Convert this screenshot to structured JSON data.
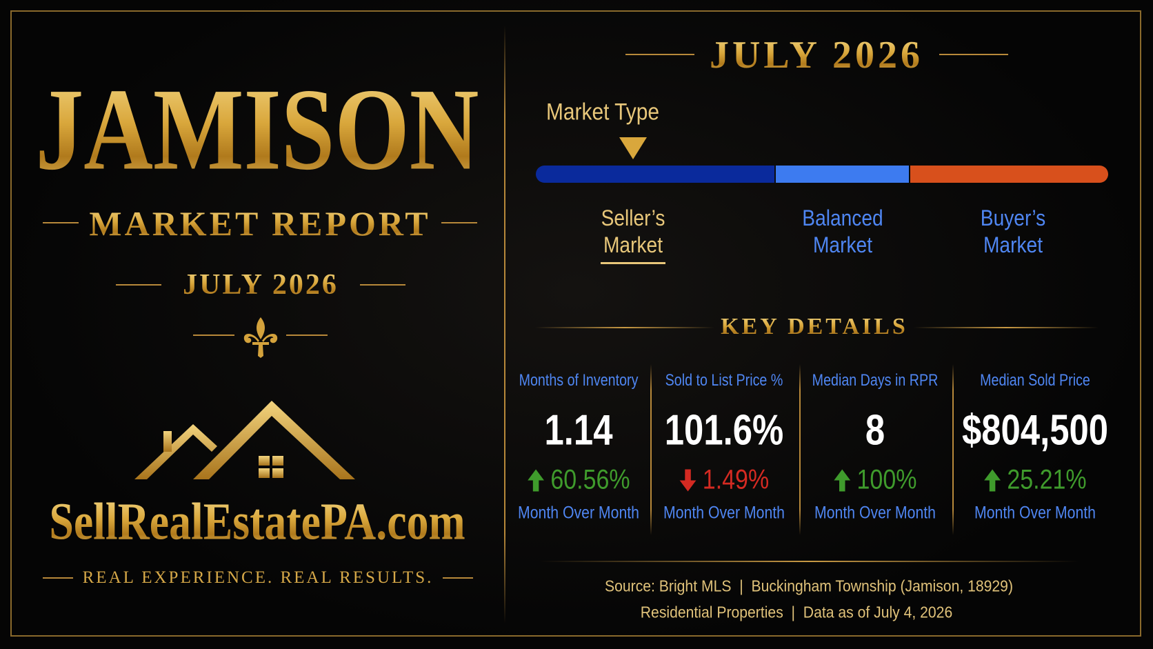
{
  "left": {
    "title": "JAMISON",
    "subtitle": "MARKET REPORT",
    "date": "JULY 2026",
    "brand": "SellRealEstatePA.com",
    "tagline": "REAL EXPERIENCE. REAL RESULTS."
  },
  "right": {
    "date": "JULY 2026",
    "market_type": {
      "label": "Market Type",
      "selected": 0,
      "segments": [
        {
          "name": "Seller’s Market",
          "color": "#0a2a9c",
          "label_color": "#e8c77a"
        },
        {
          "name": "Balanced Market",
          "color": "#3d7bf0",
          "label_color": "#4f86f2"
        },
        {
          "name": "Buyer’s Market",
          "color": "#d8501c",
          "label_color": "#4f86f2"
        }
      ]
    },
    "key_details": {
      "heading": "KEY DETAILS",
      "metrics": [
        {
          "label": "Months of Inventory",
          "value": "1.14",
          "change": "60.56%",
          "direction": "up",
          "period": "Month Over Month"
        },
        {
          "label": "Sold to List Price %",
          "value": "101.6%",
          "change": "1.49%",
          "direction": "down",
          "period": "Month Over Month"
        },
        {
          "label": "Median Days in RPR",
          "value": "8",
          "change": "100%",
          "direction": "up",
          "period": "Month Over Month"
        },
        {
          "label": "Median Sold Price",
          "value": "$804,500",
          "change": "25.21%",
          "direction": "up",
          "period": "Month Over Month"
        }
      ]
    },
    "source": [
      "Source: Bright MLS  |  Buckingham Township (Jamison, 18929)",
      "Residential Properties  |  Data as of July 4, 2026"
    ]
  }
}
